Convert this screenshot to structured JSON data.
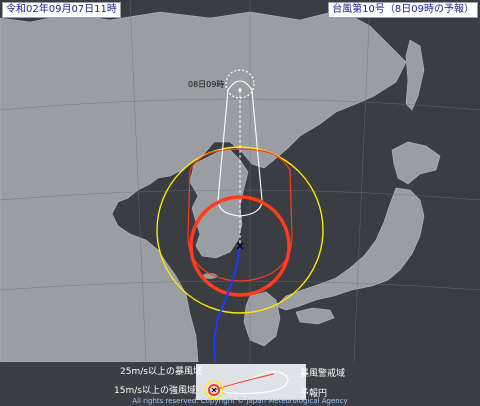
{
  "header": {
    "issued": "令和02年09月07日11時",
    "title": "台風第10号（8日09時の予報）"
  },
  "map": {
    "forecast_time_label": "08日09時",
    "colors": {
      "sea": "#3a3d42",
      "land": "#9a9ea3",
      "storm_area": "#ff3b1f",
      "warning_area": "#ff3b1f",
      "strong_wind_area": "#ffea00",
      "track": "#1a3cff",
      "forecast_circle": "#ffffff"
    }
  },
  "legend": {
    "storm_wind_label": "25m/s以上の暴風域",
    "strong_wind_label": "15m/s以上の強風域",
    "warning_label": "暴風警戒域",
    "forecast_circle_label": "予報円",
    "credit": "All rights reserved. Copyright © Japan Meteorological Agency"
  }
}
